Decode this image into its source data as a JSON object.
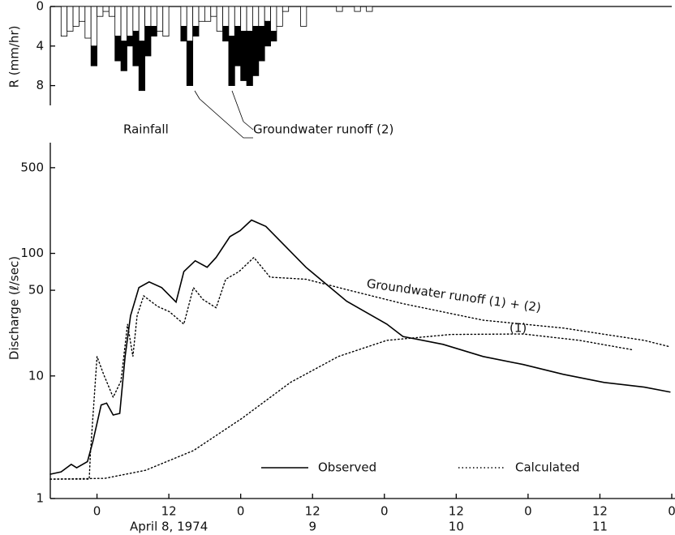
{
  "chart_data": [
    {
      "type": "bar",
      "stacked": true,
      "ylabel": "R (mm/hr)",
      "y_inverted": true,
      "xlim": [
        -7.8,
        96
      ],
      "ylim": [
        0,
        10
      ],
      "yticks": [
        0,
        4,
        8
      ],
      "x": [
        -6,
        -5,
        -4,
        -3,
        -2,
        -1,
        0,
        1,
        2,
        3,
        4,
        5,
        6,
        7,
        8,
        9,
        10,
        11,
        14,
        15,
        16,
        17,
        18,
        19,
        20,
        21,
        22,
        23,
        24,
        25,
        26,
        27,
        28,
        29,
        30,
        31,
        34,
        40,
        43,
        45
      ],
      "series": [
        {
          "name": "Rainfall",
          "color": "#ffffff",
          "values": [
            3,
            2.5,
            2,
            1.5,
            3.2,
            4,
            1,
            0.5,
            1,
            3,
            3.5,
            3,
            2.5,
            3.5,
            2,
            2,
            2.5,
            3,
            2,
            3.5,
            2,
            1.5,
            1.5,
            1,
            2.5,
            2,
            3,
            2,
            2.5,
            2.5,
            2,
            2,
            1.5,
            2.5,
            2,
            0.5,
            2,
            0.5,
            0.5,
            0.5
          ]
        },
        {
          "name": "Groundwater runoff (2)",
          "color": "#000000",
          "values": [
            0,
            0,
            0,
            0,
            0,
            2,
            0,
            0,
            0,
            2.5,
            3,
            1,
            3.5,
            5,
            3,
            1,
            0,
            0,
            1.5,
            4.5,
            1,
            0,
            0,
            0,
            0,
            1.5,
            5,
            4,
            5,
            5.5,
            5,
            3.5,
            2.5,
            1,
            0,
            0,
            0,
            0,
            0,
            0
          ]
        }
      ]
    },
    {
      "type": "line",
      "ylabel": "Discharge (ℓ/sec)",
      "log_y": true,
      "xlim": [
        -7.8,
        96
      ],
      "ylim": [
        1,
        800
      ],
      "yticks": [
        1,
        10,
        50,
        100,
        500
      ],
      "xticks": [
        0,
        12,
        {
          "value": 24,
          "label": "0"
        },
        {
          "value": 36,
          "label": "12"
        },
        {
          "value": 48,
          "label": "0"
        },
        {
          "value": 60,
          "label": "12"
        },
        {
          "value": 72,
          "label": "0"
        },
        {
          "value": 84,
          "label": "12"
        },
        {
          "value": 96,
          "label": "0"
        }
      ],
      "date_labels": [
        {
          "value": 12,
          "label": "April 8, 1974"
        },
        {
          "value": 36,
          "label": "9"
        },
        {
          "value": 60,
          "label": "10"
        },
        {
          "value": 84,
          "label": "11"
        }
      ],
      "series": [
        {
          "name": "Observed",
          "color": "#000000",
          "dash": "solid",
          "x": [
            -7.8,
            -6,
            -4.3,
            -3.4,
            -1.6,
            -0.7,
            0.7,
            1.6,
            2.7,
            3.8,
            4.7,
            5.6,
            7,
            8.7,
            10.8,
            13.2,
            14.5,
            16.4,
            18.4,
            19.9,
            22.2,
            23.9,
            25.8,
            28.2,
            34.9,
            41.7,
            48.4,
            51.1,
            57.8,
            64.5,
            71.2,
            77.9,
            84.7,
            91.4,
            95.7
          ],
          "values": [
            1.58,
            1.65,
            1.9,
            1.78,
            2.0,
            2.9,
            5.8,
            6.0,
            4.8,
            4.95,
            14.4,
            31,
            52.6,
            58.5,
            52.6,
            40,
            71,
            87,
            77,
            92.6,
            137,
            153,
            187,
            166,
            77,
            40.7,
            26.5,
            21,
            18.1,
            14.4,
            12.4,
            10.3,
            8.85,
            8.1,
            7.4
          ]
        },
        {
          "name": "Calculated",
          "color": "#000000",
          "dash": "dotted",
          "x": [
            -7.8,
            -1.3,
            -1.1,
            0,
            1.1,
            2.7,
            4,
            5.1,
            6,
            6.7,
            7.8,
            10.1,
            12.1,
            14.5,
            16.1,
            17.7,
            19.9,
            21.5,
            23.7,
            26.2,
            28.9,
            34.9,
            43,
            51.1,
            64.5,
            77.9,
            91.4,
            95.7
          ],
          "values": [
            1.44,
            1.44,
            2.3,
            14.4,
            10.3,
            6.7,
            9.1,
            26.5,
            14.4,
            31,
            45,
            37,
            33.4,
            26.5,
            52.6,
            42,
            36,
            61.5,
            71,
            92.6,
            64,
            61.5,
            48.8,
            38.9,
            28.5,
            24.6,
            19.5,
            17.3
          ]
        },
        {
          "color": "#000000",
          "dash": "dotted",
          "x": [
            -7.8,
            1.3,
            8.1,
            16.1,
            24.2,
            32.3,
            40.3,
            48.4,
            59.1,
            71.2,
            80.6,
            89.6
          ],
          "values": [
            1.44,
            1.46,
            1.7,
            2.46,
            4.5,
            8.85,
            14.4,
            19.5,
            21.8,
            22,
            19.5,
            16.3
          ]
        }
      ],
      "annotations": [
        "Groundwater runoff (1) + (2)",
        "(1)"
      ]
    }
  ]
}
